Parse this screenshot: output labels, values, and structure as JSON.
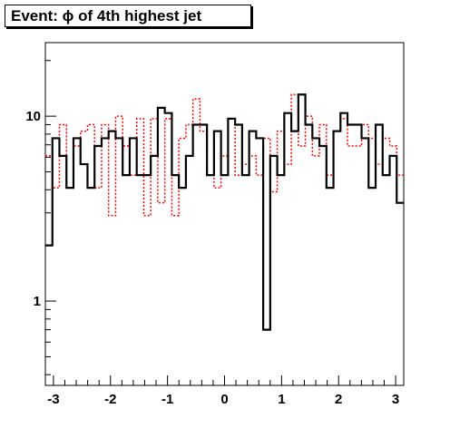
{
  "chart_data": {
    "type": "step",
    "title": "Event: ϕ of 4th highest jet",
    "xlabel": "",
    "ylabel": "",
    "xlim": [
      -3.1416,
      3.1416
    ],
    "ylim": [
      0.35,
      25
    ],
    "yscale": "log",
    "grid": false,
    "bins": 50,
    "x_ticks": [
      -3,
      -2,
      -1,
      0,
      1,
      2,
      3
    ],
    "x_tick_labels": [
      "-3",
      "-2",
      "-1",
      "0",
      "1",
      "2",
      "3"
    ],
    "y_ticks": [
      1,
      10
    ],
    "y_tick_labels": [
      "1",
      "10"
    ],
    "series": [
      {
        "color": "#000000",
        "style": "solid",
        "values": [
          2.0,
          7.6,
          6.1,
          4.1,
          7.6,
          5.5,
          4.1,
          6.9,
          7.6,
          8.3,
          7.6,
          4.8,
          7.6,
          4.8,
          4.8,
          6.1,
          11.1,
          10.4,
          4.8,
          4.1,
          6.1,
          9.0,
          9.0,
          4.8,
          8.3,
          4.8,
          9.7,
          9.0,
          4.8,
          8.3,
          7.6,
          0.7,
          6.1,
          4.8,
          10.4,
          8.3,
          13.1,
          9.0,
          7.6,
          6.9,
          4.1,
          8.3,
          10.4,
          9.0,
          9.0,
          7.6,
          4.1,
          9.0,
          4.8,
          6.1,
          3.4
        ]
      },
      {
        "color": "#ff0000",
        "style": "dotted",
        "values": [
          6.1,
          4.1,
          9.0,
          4.1,
          6.9,
          8.3,
          9.0,
          4.1,
          9.0,
          2.9,
          10.0,
          6.9,
          4.8,
          9.7,
          2.9,
          9.7,
          3.4,
          9.7,
          2.9,
          7.6,
          9.0,
          12.4,
          8.3,
          4.8,
          4.1,
          6.1,
          9.7,
          4.8,
          5.5,
          6.1,
          4.8,
          7.6,
          3.9,
          8.3,
          5.5,
          13.1,
          6.9,
          10.0,
          6.1,
          9.0,
          4.8,
          8.3,
          9.7,
          6.9,
          6.9,
          9.0,
          7.6,
          5.5,
          7.6,
          6.9,
          4.8
        ]
      }
    ]
  }
}
